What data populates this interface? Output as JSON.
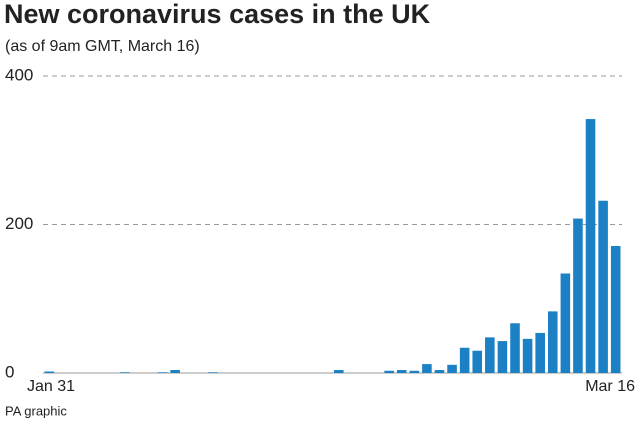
{
  "chart_data": {
    "type": "bar",
    "title": "New coronavirus cases in the UK",
    "subtitle": "(as of 9am GMT, March 16)",
    "source": "PA graphic",
    "categories": [
      "Jan 31",
      null,
      null,
      null,
      null,
      null,
      null,
      null,
      null,
      null,
      null,
      null,
      null,
      null,
      null,
      null,
      null,
      null,
      null,
      null,
      null,
      null,
      null,
      null,
      null,
      null,
      null,
      null,
      null,
      null,
      null,
      null,
      null,
      null,
      null,
      null,
      null,
      null,
      null,
      null,
      null,
      null,
      null,
      null,
      null,
      "Mar 16"
    ],
    "values": [
      2,
      0,
      0,
      0,
      0,
      0,
      1,
      0,
      0,
      1,
      4,
      0,
      0,
      1,
      0,
      0,
      0,
      0,
      0,
      0,
      0,
      0,
      0,
      4,
      0,
      0,
      0,
      3,
      4,
      3,
      12,
      4,
      11,
      34,
      30,
      48,
      43,
      67,
      46,
      54,
      83,
      134,
      208,
      342,
      232,
      171
    ],
    "color": "#1b80c4",
    "ylim": [
      0,
      400
    ],
    "yticks": [
      0,
      200,
      400
    ],
    "grid": true
  }
}
